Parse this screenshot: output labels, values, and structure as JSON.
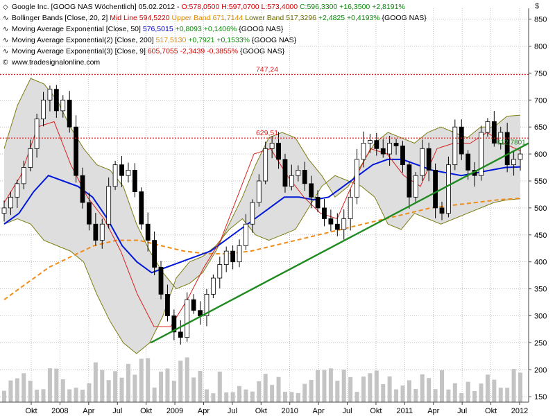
{
  "legend": {
    "row1": {
      "label": "Google Inc. [GOOG NAS  Wöchentlich] 05.02.2012 -",
      "ohlc": "O:578,0500 H:597,0700 L:573,4000",
      "close": "C:596,3300 +16,3500 +2,8191%"
    },
    "row2": {
      "label": "Bollinger Bands [Close, 20, 2]",
      "mid": "Mid Line 594,5220",
      "upper": "Upper Band 671,7144",
      "lower": "Lower Band 517,3296",
      "change": "+2,4825 +0,4193%",
      "sym": "{GOOG NAS}"
    },
    "row3": {
      "label": "Moving Average Exponential [Close, 50]",
      "value": "576,5015",
      "change": "+0,8093 +0,1406%",
      "sym": "{GOOG NAS}"
    },
    "row4": {
      "label": "Moving Average Exponential(2) [Close, 200]",
      "value": "517,5130",
      "change": "+0,7921 +0,1533%",
      "sym": "{GOOG NAS}"
    },
    "row5": {
      "label": "Moving Average Exponential(3) [Close, 9]",
      "value": "605,7055",
      "change": "-2,3439 -0,3855%",
      "sym": "{GOOG NAS}"
    },
    "row6": {
      "label": "www.tradesignalonline.com"
    }
  },
  "colors": {
    "up": "#ffffff",
    "down": "#000000",
    "band_fill": "#dedede",
    "band_line": "#7d7d14",
    "ema50": "#0018d8",
    "ema200": "#f08c18",
    "ema9": "#dc2020",
    "trend": "#1f8a1f",
    "level": "#e02020",
    "volume": "#c4c4c4",
    "grid": "#9a9a9a"
  },
  "chart_data": {
    "type": "candlestick",
    "ylim": [
      140,
      870
    ],
    "y_ticks": [
      150,
      200,
      250,
      300,
      350,
      400,
      450,
      500,
      550,
      600,
      650,
      700,
      750,
      800,
      850
    ],
    "x_labels": [
      "Okt",
      "2008",
      "Apr",
      "Jul",
      "Okt",
      "2009",
      "Apr",
      "Jul",
      "Okt",
      "2010",
      "Apr",
      "Jul",
      "Okt",
      "2011",
      "Apr",
      "Jul",
      "Okt",
      "2012"
    ],
    "levels": [
      {
        "value": 747.24,
        "label": "747,24"
      },
      {
        "value": 629.51,
        "label": "629,51"
      }
    ],
    "trendline": {
      "start": [
        "2008-11",
        250
      ],
      "end": [
        "2012-02",
        620
      ],
      "label": "612,7801"
    },
    "weekly_closes": [
      500,
      520,
      545,
      575,
      610,
      665,
      700,
      720,
      680,
      700,
      650,
      560,
      510,
      470,
      440,
      470,
      540,
      580,
      560,
      570,
      530,
      470,
      440,
      390,
      340,
      300,
      270,
      260,
      330,
      310,
      300,
      340,
      370,
      395,
      420,
      400,
      430,
      470,
      510,
      550,
      610,
      620,
      590,
      540,
      560,
      570,
      545,
      520,
      500,
      480,
      470,
      460,
      480,
      520,
      590,
      620,
      625,
      610,
      600,
      620,
      615,
      580,
      520,
      560,
      610,
      570,
      500,
      490,
      580,
      650,
      600,
      570,
      560,
      640,
      660,
      620,
      640,
      580,
      590,
      600
    ],
    "bollinger_upper": [
      610,
      690,
      740,
      730,
      700,
      650,
      610,
      580,
      570,
      540,
      470,
      420,
      380,
      350,
      360,
      380,
      420,
      470,
      520,
      580,
      630,
      640,
      630,
      590,
      560,
      520,
      540,
      580,
      620,
      640,
      630,
      620,
      640,
      650,
      640,
      630,
      650,
      650,
      670,
      672
    ],
    "bollinger_lower": [
      470,
      480,
      470,
      440,
      430,
      420,
      400,
      340,
      290,
      250,
      230,
      250,
      300,
      370,
      400,
      410,
      430,
      460,
      480,
      450,
      440,
      450,
      460,
      500,
      540,
      560,
      550,
      540,
      520,
      470,
      460,
      490,
      480,
      470,
      480,
      490,
      500,
      510,
      515,
      517
    ],
    "ema50": [
      470,
      490,
      530,
      560,
      550,
      540,
      520,
      480,
      430,
      400,
      380,
      390,
      400,
      410,
      420,
      440,
      460,
      480,
      500,
      520,
      520,
      515,
      520,
      540,
      560,
      580,
      590,
      590,
      580,
      570,
      565,
      560,
      565,
      570,
      575,
      576
    ],
    "ema200": [
      330,
      360,
      390,
      410,
      430,
      440,
      440,
      430,
      420,
      415,
      415,
      420,
      430,
      440,
      450,
      460,
      470,
      480,
      490,
      500,
      505,
      510,
      515,
      518
    ],
    "ema9": [
      510,
      560,
      650,
      660,
      580,
      520,
      480,
      420,
      340,
      280,
      280,
      330,
      390,
      440,
      520,
      600,
      610,
      560,
      520,
      490,
      480,
      550,
      610,
      600,
      560,
      540,
      610,
      620,
      620,
      640,
      620,
      606
    ]
  }
}
